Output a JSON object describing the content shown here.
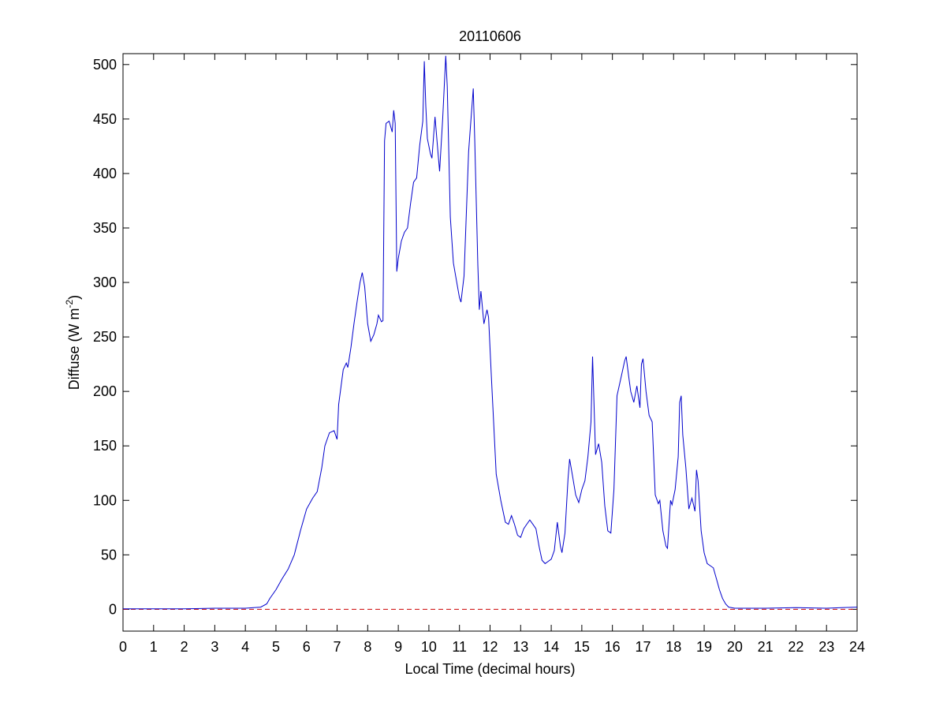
{
  "chart_data": {
    "type": "line",
    "title": "20110606",
    "xlabel": "Local Time (decimal hours)",
    "ylabel": {
      "main": "Diffuse (W m",
      "superscript": "-2",
      "suffix": ")"
    },
    "xlim": [
      0,
      24
    ],
    "ylim": [
      -20,
      510
    ],
    "xticks": [
      0,
      1,
      2,
      3,
      4,
      5,
      6,
      7,
      8,
      9,
      10,
      11,
      12,
      13,
      14,
      15,
      16,
      17,
      18,
      19,
      20,
      21,
      22,
      23,
      24
    ],
    "yticks": [
      0,
      50,
      100,
      150,
      200,
      250,
      300,
      350,
      400,
      450,
      500
    ],
    "grid": false,
    "reference_line": {
      "y": 0,
      "color": "#cc0000",
      "style": "dashed"
    },
    "series": [
      {
        "color": "#0000cc",
        "points": [
          [
            0,
            0.5
          ],
          [
            1,
            0.5
          ],
          [
            2,
            0.5
          ],
          [
            3,
            1
          ],
          [
            4,
            1
          ],
          [
            4.5,
            2
          ],
          [
            4.7,
            5
          ],
          [
            4.8,
            10
          ],
          [
            5.0,
            18
          ],
          [
            5.2,
            28
          ],
          [
            5.4,
            37
          ],
          [
            5.6,
            50
          ],
          [
            5.8,
            72
          ],
          [
            6.0,
            92
          ],
          [
            6.2,
            102
          ],
          [
            6.35,
            108
          ],
          [
            6.5,
            130
          ],
          [
            6.6,
            150
          ],
          [
            6.75,
            162
          ],
          [
            6.9,
            164
          ],
          [
            7.0,
            156
          ],
          [
            7.05,
            188
          ],
          [
            7.2,
            220
          ],
          [
            7.3,
            226
          ],
          [
            7.35,
            222
          ],
          [
            7.45,
            240
          ],
          [
            7.55,
            262
          ],
          [
            7.65,
            282
          ],
          [
            7.75,
            300
          ],
          [
            7.82,
            309
          ],
          [
            7.9,
            296
          ],
          [
            8.0,
            262
          ],
          [
            8.1,
            246
          ],
          [
            8.2,
            252
          ],
          [
            8.3,
            262
          ],
          [
            8.35,
            270
          ],
          [
            8.45,
            264
          ],
          [
            8.5,
            265
          ],
          [
            8.55,
            430
          ],
          [
            8.6,
            446
          ],
          [
            8.7,
            448
          ],
          [
            8.8,
            438
          ],
          [
            8.85,
            458
          ],
          [
            8.9,
            446
          ],
          [
            8.95,
            310
          ],
          [
            9.0,
            322
          ],
          [
            9.1,
            338
          ],
          [
            9.2,
            346
          ],
          [
            9.3,
            350
          ],
          [
            9.4,
            372
          ],
          [
            9.5,
            392
          ],
          [
            9.6,
            396
          ],
          [
            9.7,
            426
          ],
          [
            9.8,
            448
          ],
          [
            9.85,
            503
          ],
          [
            9.9,
            462
          ],
          [
            9.95,
            432
          ],
          [
            10.05,
            418
          ],
          [
            10.1,
            414
          ],
          [
            10.2,
            452
          ],
          [
            10.3,
            418
          ],
          [
            10.35,
            402
          ],
          [
            10.45,
            450
          ],
          [
            10.55,
            508
          ],
          [
            10.6,
            480
          ],
          [
            10.7,
            360
          ],
          [
            10.8,
            318
          ],
          [
            10.9,
            302
          ],
          [
            11.0,
            286
          ],
          [
            11.05,
            282
          ],
          [
            11.15,
            306
          ],
          [
            11.3,
            420
          ],
          [
            11.35,
            440
          ],
          [
            11.45,
            478
          ],
          [
            11.5,
            430
          ],
          [
            11.6,
            316
          ],
          [
            11.65,
            275
          ],
          [
            11.7,
            292
          ],
          [
            11.8,
            262
          ],
          [
            11.9,
            275
          ],
          [
            11.95,
            268
          ],
          [
            12.05,
            210
          ],
          [
            12.2,
            124
          ],
          [
            12.35,
            100
          ],
          [
            12.5,
            80
          ],
          [
            12.6,
            78
          ],
          [
            12.7,
            86
          ],
          [
            12.8,
            78
          ],
          [
            12.9,
            68
          ],
          [
            13.0,
            66
          ],
          [
            13.1,
            74
          ],
          [
            13.2,
            78
          ],
          [
            13.3,
            82
          ],
          [
            13.4,
            78
          ],
          [
            13.5,
            74
          ],
          [
            13.6,
            58
          ],
          [
            13.7,
            45
          ],
          [
            13.8,
            42
          ],
          [
            13.9,
            44
          ],
          [
            14.0,
            46
          ],
          [
            14.1,
            54
          ],
          [
            14.2,
            80
          ],
          [
            14.3,
            58
          ],
          [
            14.35,
            52
          ],
          [
            14.45,
            70
          ],
          [
            14.55,
            120
          ],
          [
            14.6,
            138
          ],
          [
            14.7,
            122
          ],
          [
            14.8,
            105
          ],
          [
            14.9,
            98
          ],
          [
            15.0,
            110
          ],
          [
            15.1,
            118
          ],
          [
            15.2,
            140
          ],
          [
            15.3,
            172
          ],
          [
            15.35,
            232
          ],
          [
            15.45,
            142
          ],
          [
            15.55,
            152
          ],
          [
            15.65,
            135
          ],
          [
            15.75,
            95
          ],
          [
            15.85,
            72
          ],
          [
            15.95,
            70
          ],
          [
            16.05,
            110
          ],
          [
            16.15,
            196
          ],
          [
            16.3,
            215
          ],
          [
            16.4,
            228
          ],
          [
            16.45,
            232
          ],
          [
            16.55,
            210
          ],
          [
            16.6,
            200
          ],
          [
            16.7,
            190
          ],
          [
            16.8,
            205
          ],
          [
            16.9,
            185
          ],
          [
            16.95,
            225
          ],
          [
            17.0,
            230
          ],
          [
            17.1,
            200
          ],
          [
            17.2,
            178
          ],
          [
            17.3,
            172
          ],
          [
            17.4,
            105
          ],
          [
            17.5,
            97
          ],
          [
            17.55,
            100
          ],
          [
            17.65,
            72
          ],
          [
            17.75,
            58
          ],
          [
            17.8,
            56
          ],
          [
            17.9,
            100
          ],
          [
            17.95,
            96
          ],
          [
            18.05,
            110
          ],
          [
            18.15,
            140
          ],
          [
            18.2,
            190
          ],
          [
            18.25,
            196
          ],
          [
            18.3,
            160
          ],
          [
            18.4,
            130
          ],
          [
            18.5,
            92
          ],
          [
            18.6,
            102
          ],
          [
            18.65,
            96
          ],
          [
            18.7,
            90
          ],
          [
            18.75,
            128
          ],
          [
            18.8,
            118
          ],
          [
            18.9,
            72
          ],
          [
            19.0,
            52
          ],
          [
            19.1,
            42
          ],
          [
            19.2,
            40
          ],
          [
            19.3,
            38
          ],
          [
            19.4,
            28
          ],
          [
            19.5,
            18
          ],
          [
            19.6,
            10
          ],
          [
            19.7,
            5
          ],
          [
            19.8,
            2
          ],
          [
            20.0,
            1
          ],
          [
            21,
            1
          ],
          [
            22,
            1.5
          ],
          [
            23,
            1
          ],
          [
            23.5,
            1.5
          ],
          [
            24,
            2
          ]
        ]
      }
    ]
  }
}
